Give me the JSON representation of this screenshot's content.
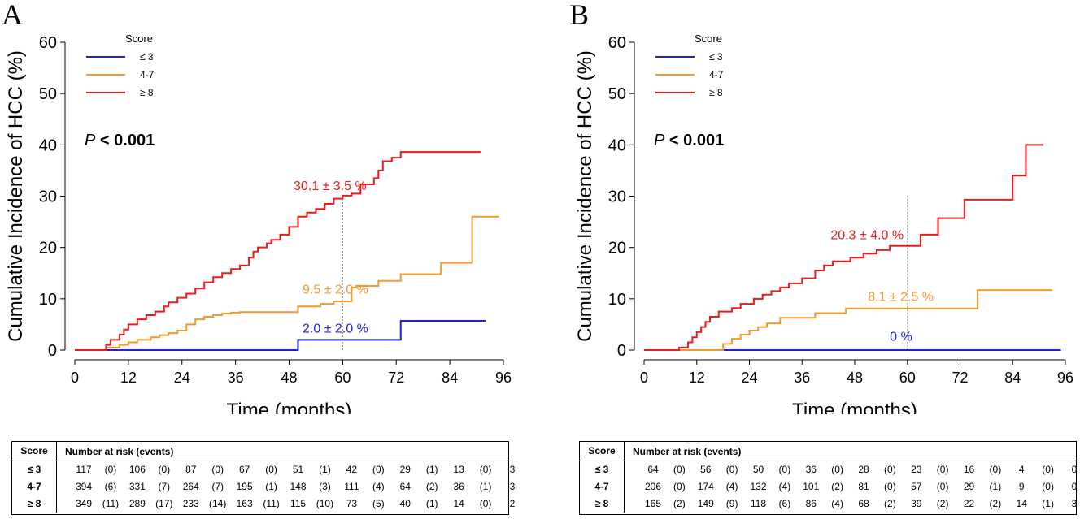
{
  "colors": {
    "low": "#1f1fe0",
    "mid": "#f29a2e",
    "high": "#ec1c1c",
    "ref": "#999999"
  },
  "table_header": {
    "score": "Score",
    "number_at_risk": "Number at risk (events)"
  },
  "chart_data": [
    {
      "type": "line",
      "panel_label": "A",
      "ylabel": "Cumulative Incidence of HCC (%)",
      "xlabel": "Time (months)",
      "xlim": [
        0,
        96
      ],
      "ylim": [
        0,
        60
      ],
      "xticks": [
        "0",
        "12",
        "24",
        "36",
        "48",
        "60",
        "72",
        "84",
        "96"
      ],
      "yticks": [
        "0",
        "10",
        "20",
        "30",
        "40",
        "50",
        "60"
      ],
      "legend_title": "Score",
      "pvalue": {
        "p": "P",
        "rest": " < 0.001"
      },
      "reference_x": 60,
      "series": [
        {
          "name": "≤ 3",
          "color_key": "low",
          "x": [
            0,
            50,
            50,
            73,
            73,
            92
          ],
          "y": [
            0,
            0,
            2,
            2,
            5.7,
            5.7
          ]
        },
        {
          "name": "4-7",
          "color_key": "mid",
          "x": [
            0,
            6,
            7,
            10,
            12,
            14,
            17,
            19,
            21,
            23,
            25,
            27,
            29,
            31,
            33,
            35,
            37,
            48,
            50,
            55,
            58,
            60,
            62,
            63,
            68,
            73,
            82,
            89,
            89,
            95
          ],
          "y": [
            0,
            0,
            0.5,
            1,
            1.5,
            2,
            2.5,
            2.9,
            3.3,
            3.8,
            5,
            6,
            6.5,
            6.8,
            7.1,
            7.3,
            7.4,
            7.4,
            8.5,
            9,
            9.5,
            9.5,
            12.2,
            12.5,
            13.5,
            14.8,
            17,
            17,
            26,
            26
          ]
        },
        {
          "name": "≥ 8",
          "color_key": "high",
          "x": [
            0,
            6,
            7,
            8,
            10,
            11,
            12,
            14,
            16,
            18,
            20,
            21,
            23,
            25,
            27,
            29,
            31,
            33,
            35,
            37,
            39,
            40,
            41,
            43,
            44,
            46,
            48,
            50,
            52,
            54,
            56,
            58,
            60,
            62,
            64,
            67,
            68,
            69,
            71,
            73,
            79,
            91
          ],
          "y": [
            0,
            0,
            1,
            2,
            3,
            4,
            5,
            6,
            6.8,
            7.5,
            8.5,
            9.3,
            10.2,
            11,
            12,
            13.2,
            14.2,
            15,
            15.8,
            16.5,
            18,
            19.2,
            20,
            20.8,
            21.5,
            22.5,
            24,
            26,
            26.8,
            27.5,
            28.5,
            29.5,
            30.1,
            30.5,
            32.3,
            33.5,
            35,
            36.8,
            37.5,
            38.6,
            38.6,
            38.6
          ]
        }
      ],
      "annotations": [
        {
          "text": "30.1 ± 3.5 %",
          "x": 49,
          "y": 31.2,
          "color_key": "high"
        },
        {
          "text": "9.5 ± 2.0 %",
          "x": 51,
          "y": 11,
          "color_key": "mid"
        },
        {
          "text": "2.0 ± 2.0 %",
          "x": 51,
          "y": 3.4,
          "color_key": "low"
        }
      ],
      "risk_table": {
        "rows": [
          {
            "label": "≤ 3",
            "cells": [
              "117",
              "(0)",
              "106",
              "(0)",
              "87",
              "(0)",
              "67",
              "(0)",
              "51",
              "(1)",
              "42",
              "(0)",
              "29",
              "(1)",
              "13",
              "(0)",
              "3"
            ]
          },
          {
            "label": "4-7",
            "cells": [
              "394",
              "(6)",
              "331",
              "(7)",
              "264",
              "(7)",
              "195",
              "(1)",
              "148",
              "(3)",
              "111",
              "(4)",
              "64",
              "(2)",
              "36",
              "(1)",
              "3"
            ]
          },
          {
            "label": "≥ 8",
            "cells": [
              "349",
              "(11)",
              "289",
              "(17)",
              "233",
              "(14)",
              "163",
              "(11)",
              "115",
              "(10)",
              "73",
              "(5)",
              "40",
              "(1)",
              "14",
              "(0)",
              "2"
            ]
          }
        ]
      }
    },
    {
      "type": "line",
      "panel_label": "B",
      "ylabel": "Cumulative Incidence of HCC (%)",
      "xlabel": "Time (months)",
      "xlim": [
        0,
        96
      ],
      "ylim": [
        0,
        60
      ],
      "xticks": [
        "0",
        "12",
        "24",
        "36",
        "48",
        "60",
        "72",
        "84",
        "96"
      ],
      "yticks": [
        "0",
        "10",
        "20",
        "30",
        "40",
        "50",
        "60"
      ],
      "legend_title": "Score",
      "pvalue": {
        "p": "P",
        "rest": " < 0.001"
      },
      "reference_x": 60,
      "series": [
        {
          "name": "≤ 3",
          "color_key": "low",
          "x": [
            0,
            95
          ],
          "y": [
            0,
            0
          ]
        },
        {
          "name": "4-7",
          "color_key": "mid",
          "x": [
            0,
            17,
            18,
            20,
            22,
            24,
            26,
            28,
            31,
            34,
            39,
            43,
            46,
            75,
            76,
            93
          ],
          "y": [
            0,
            0,
            1.2,
            2.2,
            3,
            3.8,
            4.5,
            5.2,
            6.3,
            6.3,
            7.2,
            7.2,
            8.1,
            8.1,
            11.7,
            11.7
          ]
        },
        {
          "name": "≥ 8",
          "color_key": "high",
          "x": [
            0,
            8,
            10,
            11,
            12,
            13,
            14,
            15,
            17,
            20,
            22,
            25,
            27,
            29,
            31,
            33,
            36,
            39,
            41,
            43,
            47,
            50,
            53,
            56,
            61,
            63,
            67,
            73,
            84,
            87,
            91
          ],
          "y": [
            0,
            0.5,
            1.5,
            2.5,
            3.5,
            4.5,
            5.5,
            6.5,
            7.5,
            8.2,
            9,
            10,
            10.8,
            11.5,
            12.2,
            13,
            14,
            15.5,
            16.5,
            17.3,
            18,
            18.8,
            19.5,
            20.3,
            20.3,
            22.5,
            25.7,
            29.3,
            34,
            40,
            40
          ]
        }
      ],
      "annotations": [
        {
          "text": "20.3 ± 4.0 %",
          "x": 42.5,
          "y": 21.6,
          "color_key": "high"
        },
        {
          "text": "8.1 ± 2.5 %",
          "x": 51,
          "y": 9.6,
          "color_key": "mid"
        },
        {
          "text": "0 %",
          "x": 56,
          "y": 1.8,
          "color_key": "low"
        }
      ],
      "risk_table": {
        "rows": [
          {
            "label": "≤ 3",
            "cells": [
              "64",
              "(0)",
              "56",
              "(0)",
              "50",
              "(0)",
              "36",
              "(0)",
              "28",
              "(0)",
              "23",
              "(0)",
              "16",
              "(0)",
              "4",
              "(0)",
              "0"
            ]
          },
          {
            "label": "4-7",
            "cells": [
              "206",
              "(0)",
              "174",
              "(4)",
              "132",
              "(4)",
              "101",
              "(2)",
              "81",
              "(0)",
              "57",
              "(0)",
              "29",
              "(1)",
              "9",
              "(0)",
              "0"
            ]
          },
          {
            "label": "≥ 8",
            "cells": [
              "165",
              "(2)",
              "149",
              "(9)",
              "118",
              "(6)",
              "86",
              "(4)",
              "68",
              "(2)",
              "39",
              "(2)",
              "22",
              "(2)",
              "14",
              "(1)",
              "3"
            ]
          }
        ]
      }
    }
  ]
}
